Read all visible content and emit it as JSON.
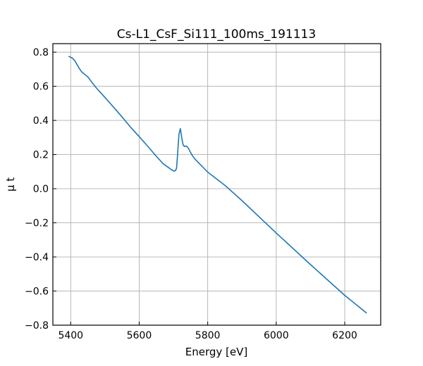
{
  "chart_data": {
    "type": "line",
    "title": "Cs-L1_CsF_Si111_100ms_191113",
    "xlabel": "Energy [eV]",
    "ylabel": "μ t",
    "xlim": [
      5348,
      6305
    ],
    "ylim": [
      -0.8,
      0.85
    ],
    "grid": true,
    "x_ticks": [
      5400,
      5600,
      5800,
      6000,
      6200
    ],
    "x_tick_labels": [
      "5400",
      "5600",
      "5800",
      "6000",
      "6200"
    ],
    "y_ticks": [
      -0.8,
      -0.6,
      -0.4,
      -0.2,
      0.0,
      0.2,
      0.4,
      0.6,
      0.8
    ],
    "y_tick_labels": [
      "−0.8",
      "−0.6",
      "−0.4",
      "−0.2",
      "0.0",
      "0.2",
      "0.4",
      "0.6",
      "0.8"
    ],
    "colors": {
      "series": "#1f77b4"
    },
    "series": [
      {
        "x": [
          5395,
          5405,
          5412,
          5418,
          5425,
          5432,
          5440,
          5450,
          5460,
          5475,
          5500,
          5525,
          5550,
          5575,
          5600,
          5625,
          5650,
          5670,
          5685,
          5695,
          5702,
          5706,
          5709,
          5712,
          5716,
          5720,
          5724,
          5728,
          5732,
          5736,
          5740,
          5745,
          5750,
          5755,
          5762,
          5775,
          5800,
          5850,
          5900,
          6000,
          6100,
          6200,
          6263
        ],
        "y": [
          0.775,
          0.765,
          0.75,
          0.73,
          0.705,
          0.685,
          0.672,
          0.655,
          0.628,
          0.59,
          0.535,
          0.478,
          0.42,
          0.36,
          0.305,
          0.248,
          0.19,
          0.146,
          0.125,
          0.11,
          0.103,
          0.106,
          0.12,
          0.2,
          0.318,
          0.352,
          0.3,
          0.258,
          0.247,
          0.25,
          0.246,
          0.232,
          0.212,
          0.195,
          0.175,
          0.148,
          0.097,
          0.02,
          -0.07,
          -0.26,
          -0.445,
          -0.625,
          -0.728
        ]
      }
    ]
  }
}
